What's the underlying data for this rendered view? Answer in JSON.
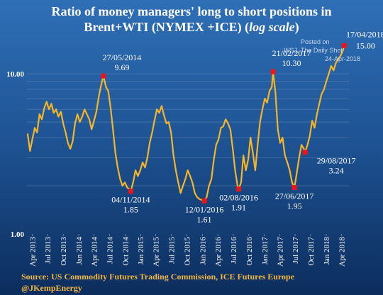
{
  "chart_data": {
    "type": "line",
    "title_line1": "Ratio of money managers' long to short positions in",
    "title_line2_main": "Brent+WTI (NYMEX +ICE) (",
    "title_line2_italic": "log scale",
    "title_line2_end": ")",
    "yscale": "log",
    "ylim": [
      1.0,
      17.0
    ],
    "y_tick_labels": [
      "10.00",
      "1.00"
    ],
    "y_ticks": [
      10,
      1
    ],
    "grid": "horizontal",
    "x_tick_labels": [
      "Apr 2013",
      "Jul 2013",
      "Oct 2013",
      "Jan 2014",
      "Apr 2014",
      "Jul 2014",
      "Oct 2014",
      "Jan 2015",
      "Apr 2015",
      "Jul 2015",
      "Oct 2015",
      "Jan 2016",
      "Apr 2016",
      "Jul 2016",
      "Oct 2016",
      "Jan 2017",
      "Apr 2017",
      "Jul 2017",
      "Oct 2017",
      "Jan 2018",
      "Apr 2018"
    ],
    "x_ticks": [
      "2013-04",
      "2013-07",
      "2013-10",
      "2014-01",
      "2014-04",
      "2014-07",
      "2014-10",
      "2015-01",
      "2015-04",
      "2015-07",
      "2015-10",
      "2016-01",
      "2016-04",
      "2016-07",
      "2016-10",
      "2017-01",
      "2017-04",
      "2017-07",
      "2017-10",
      "2018-01",
      "2018-04"
    ],
    "xlim": [
      "2013-03-01",
      "2018-05-15"
    ],
    "series": [
      {
        "color": "#f4b528",
        "points": [
          [
            "2013-03-05",
            4.2
          ],
          [
            "2013-03-19",
            3.3
          ],
          [
            "2013-04-02",
            3.9
          ],
          [
            "2013-04-16",
            4.6
          ],
          [
            "2013-04-30",
            4.3
          ],
          [
            "2013-05-14",
            5.6
          ],
          [
            "2013-05-28",
            5.2
          ],
          [
            "2013-06-11",
            6.1
          ],
          [
            "2013-06-25",
            6.7
          ],
          [
            "2013-07-09",
            6.0
          ],
          [
            "2013-07-23",
            6.5
          ],
          [
            "2013-08-06",
            5.7
          ],
          [
            "2013-08-20",
            6.0
          ],
          [
            "2013-09-03",
            5.4
          ],
          [
            "2013-09-17",
            5.8
          ],
          [
            "2013-10-01",
            4.9
          ],
          [
            "2013-10-15",
            4.3
          ],
          [
            "2013-10-29",
            3.7
          ],
          [
            "2013-11-12",
            3.4
          ],
          [
            "2013-11-26",
            3.8
          ],
          [
            "2013-12-10",
            4.9
          ],
          [
            "2013-12-24",
            5.6
          ],
          [
            "2014-01-07",
            5.0
          ],
          [
            "2014-01-21",
            5.4
          ],
          [
            "2014-02-04",
            6.0
          ],
          [
            "2014-02-18",
            5.6
          ],
          [
            "2014-03-04",
            5.2
          ],
          [
            "2014-03-18",
            4.5
          ],
          [
            "2014-04-01",
            5.1
          ],
          [
            "2014-04-15",
            5.8
          ],
          [
            "2014-04-29",
            7.2
          ],
          [
            "2014-05-13",
            8.5
          ],
          [
            "2014-05-27",
            9.69
          ],
          [
            "2014-06-10",
            8.3
          ],
          [
            "2014-06-24",
            7.8
          ],
          [
            "2014-07-08",
            6.1
          ],
          [
            "2014-07-22",
            4.5
          ],
          [
            "2014-08-05",
            3.2
          ],
          [
            "2014-08-19",
            2.6
          ],
          [
            "2014-09-02",
            2.2
          ],
          [
            "2014-09-16",
            2.0
          ],
          [
            "2014-09-30",
            2.1
          ],
          [
            "2014-10-14",
            1.95
          ],
          [
            "2014-10-28",
            1.9
          ],
          [
            "2014-11-04",
            1.85
          ],
          [
            "2014-11-18",
            2.1
          ],
          [
            "2014-12-02",
            2.5
          ],
          [
            "2014-12-16",
            2.3
          ],
          [
            "2014-12-30",
            2.5
          ],
          [
            "2015-01-13",
            2.8
          ],
          [
            "2015-01-27",
            2.6
          ],
          [
            "2015-02-10",
            3.0
          ],
          [
            "2015-02-24",
            3.7
          ],
          [
            "2015-03-10",
            4.3
          ],
          [
            "2015-03-24",
            5.1
          ],
          [
            "2015-04-07",
            6.0
          ],
          [
            "2015-04-21",
            5.7
          ],
          [
            "2015-05-05",
            6.3
          ],
          [
            "2015-05-19",
            5.5
          ],
          [
            "2015-06-02",
            4.9
          ],
          [
            "2015-06-16",
            5.0
          ],
          [
            "2015-06-30",
            4.3
          ],
          [
            "2015-07-14",
            3.1
          ],
          [
            "2015-07-28",
            2.5
          ],
          [
            "2015-08-11",
            2.1
          ],
          [
            "2015-08-25",
            1.8
          ],
          [
            "2015-09-08",
            2.0
          ],
          [
            "2015-09-22",
            2.2
          ],
          [
            "2015-10-06",
            2.5
          ],
          [
            "2015-10-20",
            2.3
          ],
          [
            "2015-11-03",
            2.1
          ],
          [
            "2015-11-17",
            1.8
          ],
          [
            "2015-12-01",
            1.7
          ],
          [
            "2015-12-15",
            1.65
          ],
          [
            "2015-12-29",
            1.63
          ],
          [
            "2016-01-12",
            1.61
          ],
          [
            "2016-01-26",
            1.7
          ],
          [
            "2016-02-09",
            2.0
          ],
          [
            "2016-02-23",
            2.2
          ],
          [
            "2016-03-08",
            2.9
          ],
          [
            "2016-03-22",
            3.6
          ],
          [
            "2016-04-05",
            3.9
          ],
          [
            "2016-04-19",
            4.6
          ],
          [
            "2016-05-03",
            4.7
          ],
          [
            "2016-05-17",
            5.2
          ],
          [
            "2016-05-31",
            4.9
          ],
          [
            "2016-06-14",
            4.5
          ],
          [
            "2016-06-28",
            3.4
          ],
          [
            "2016-07-12",
            2.5
          ],
          [
            "2016-07-26",
            2.0
          ],
          [
            "2016-08-02",
            1.91
          ],
          [
            "2016-08-16",
            2.1
          ],
          [
            "2016-08-30",
            3.1
          ],
          [
            "2016-09-13",
            2.5
          ],
          [
            "2016-09-27",
            2.9
          ],
          [
            "2016-10-11",
            4.0
          ],
          [
            "2016-10-25",
            3.2
          ],
          [
            "2016-11-08",
            2.5
          ],
          [
            "2016-11-22",
            3.6
          ],
          [
            "2016-12-06",
            5.0
          ],
          [
            "2016-12-20",
            6.0
          ],
          [
            "2017-01-03",
            7.0
          ],
          [
            "2017-01-17",
            6.6
          ],
          [
            "2017-01-31",
            7.8
          ],
          [
            "2017-02-14",
            8.3
          ],
          [
            "2017-02-21",
            10.3
          ],
          [
            "2017-03-07",
            7.6
          ],
          [
            "2017-03-21",
            4.5
          ],
          [
            "2017-04-04",
            3.7
          ],
          [
            "2017-04-18",
            4.0
          ],
          [
            "2017-05-02",
            3.1
          ],
          [
            "2017-05-16",
            2.8
          ],
          [
            "2017-05-30",
            2.5
          ],
          [
            "2017-06-13",
            2.1
          ],
          [
            "2017-06-27",
            1.95
          ],
          [
            "2017-07-11",
            2.4
          ],
          [
            "2017-07-25",
            3.0
          ],
          [
            "2017-08-08",
            3.6
          ],
          [
            "2017-08-22",
            3.4
          ],
          [
            "2017-08-29",
            3.24
          ],
          [
            "2017-09-12",
            3.6
          ],
          [
            "2017-09-26",
            4.1
          ],
          [
            "2017-10-10",
            5.1
          ],
          [
            "2017-10-24",
            4.6
          ],
          [
            "2017-11-07",
            5.6
          ],
          [
            "2017-11-21",
            6.5
          ],
          [
            "2017-12-05",
            7.5
          ],
          [
            "2017-12-19",
            8.0
          ],
          [
            "2018-01-02",
            9.0
          ],
          [
            "2018-01-16",
            10.0
          ],
          [
            "2018-01-30",
            11.2
          ],
          [
            "2018-02-13",
            10.5
          ],
          [
            "2018-02-27",
            11.7
          ],
          [
            "2018-03-13",
            12.4
          ],
          [
            "2018-03-27",
            13.0
          ],
          [
            "2018-04-10",
            14.0
          ],
          [
            "2018-04-17",
            15.0
          ]
        ]
      }
    ],
    "markers": [
      {
        "date": "2014-05-27",
        "value": 9.69,
        "date_label": "27/05/2014",
        "value_label": "9.69",
        "pos": "above"
      },
      {
        "date": "2014-11-04",
        "value": 1.85,
        "date_label": "04/11/2014",
        "value_label": "1.85",
        "pos": "below"
      },
      {
        "date": "2016-01-12",
        "value": 1.61,
        "date_label": "12/01/2016",
        "value_label": "1.61",
        "pos": "below"
      },
      {
        "date": "2016-08-02",
        "value": 1.91,
        "date_label": "02/08/2016",
        "value_label": "1.91",
        "pos": "below"
      },
      {
        "date": "2017-02-21",
        "value": 10.3,
        "date_label": "21/02/2017",
        "value_label": "10.30",
        "pos": "above"
      },
      {
        "date": "2017-06-27",
        "value": 1.95,
        "date_label": "27/06/2017",
        "value_label": "1.95",
        "pos": "below"
      },
      {
        "date": "2017-08-29",
        "value": 3.24,
        "date_label": "29/08/2017",
        "value_label": "3.24",
        "pos": "right"
      },
      {
        "date": "2018-04-17",
        "value": 15.0,
        "date_label": "17/04/2018",
        "value_label": "15.00",
        "pos": "right-top"
      }
    ],
    "watermark": [
      "Posted on",
      "WSJ. The Daily Shot",
      "24-Apr-2018"
    ],
    "source_line1": "Source: US Commodity Futures Trading Commission, ICE Futures Europe",
    "source_line2": "@JKempEnergy",
    "colors": {
      "line": "#f4b528",
      "marker": "#e8151b",
      "source_text": "#f4b642",
      "grid": "#7f9cc4"
    }
  }
}
